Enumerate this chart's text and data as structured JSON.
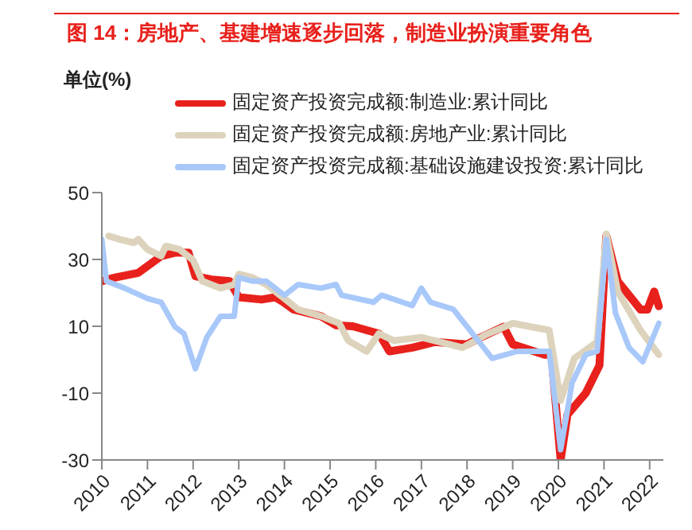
{
  "chart_data": {
    "type": "line",
    "title": "图 14：房地产、基建增速逐步回落，制造业扮演重要角色",
    "ylabel": "单位(%)",
    "xlim": [
      2010,
      2022.3
    ],
    "xticks": [
      2010,
      2011,
      2012,
      2013,
      2014,
      2015,
      2016,
      2017,
      2018,
      2019,
      2020,
      2021,
      2022
    ],
    "ylim": [
      -30,
      50
    ],
    "yticks": [
      -30,
      -10,
      10,
      30,
      50
    ],
    "grid": false,
    "legend": "top",
    "marker": "none",
    "line_style": "solid",
    "series": [
      {
        "name": "固定资产投资完成额:制造业:累计同比",
        "color": "#e8211c",
        "x": [
          2010.0,
          2010.3,
          2010.8,
          2011.1,
          2011.3,
          2011.6,
          2011.9,
          2012.05,
          2012.4,
          2012.8,
          2013.0,
          2013.5,
          2013.8,
          2014.0,
          2014.2,
          2014.8,
          2015.13,
          2015.5,
          2016.07,
          2016.3,
          2016.8,
          2017.3,
          2018.0,
          2018.2,
          2018.8,
          2019.0,
          2019.7,
          2019.85,
          2020.05,
          2020.2,
          2020.6,
          2020.9,
          2021.05,
          2021.3,
          2021.8,
          2021.95,
          2022.1,
          2022.2
        ],
        "values": [
          23.5,
          24.6,
          26,
          29,
          31,
          32,
          32,
          25,
          24,
          23.5,
          18.7,
          18,
          18.7,
          17,
          15,
          13,
          10.3,
          10,
          7.8,
          2.5,
          3.6,
          5.3,
          4.6,
          6,
          9.9,
          4.6,
          1.5,
          1.5,
          -30,
          -16.4,
          -10,
          -1.7,
          37,
          23.5,
          15,
          15,
          20.4,
          16
        ]
      },
      {
        "name": "固定资产投资完成额:房地产业:累计同比",
        "color": "#ddd3bc",
        "x": [
          2010.15,
          2010.4,
          2010.7,
          2010.8,
          2011.0,
          2011.3,
          2011.4,
          2011.7,
          2012.0,
          2012.2,
          2012.6,
          2012.9,
          2013.0,
          2013.3,
          2013.6,
          2014.0,
          2014.3,
          2014.8,
          2015.2,
          2015.4,
          2015.8,
          2016.07,
          2016.4,
          2017.0,
          2017.9,
          2018.4,
          2019.0,
          2019.8,
          2020.05,
          2020.35,
          2020.85,
          2021.05,
          2021.3,
          2021.8,
          2022.2
        ],
        "values": [
          37,
          36,
          35,
          36,
          33,
          31,
          34,
          33,
          29.8,
          23.5,
          21.4,
          22.5,
          25.6,
          24.6,
          22.5,
          18.3,
          15,
          13,
          10.9,
          5.7,
          2.5,
          7.8,
          5.7,
          6.7,
          3.6,
          7.4,
          10.9,
          8.8,
          -12.2,
          0.4,
          5.3,
          37.6,
          20.4,
          8.8,
          1.5
        ]
      },
      {
        "name": "固定资产投资完成额:基础设施建设投资:累计同比",
        "color": "#a8c8fa",
        "x": [
          2010.0,
          2010.1,
          2010.5,
          2011.0,
          2011.3,
          2011.6,
          2011.8,
          2012.05,
          2012.3,
          2012.6,
          2012.9,
          2013.0,
          2013.3,
          2013.6,
          2014.0,
          2014.3,
          2014.8,
          2015.13,
          2015.25,
          2015.95,
          2016.13,
          2016.8,
          2017.0,
          2017.2,
          2017.7,
          2018.55,
          2019.1,
          2019.8,
          2020.05,
          2020.3,
          2020.6,
          2020.85,
          2021.05,
          2021.25,
          2021.55,
          2021.85,
          2022.2
        ],
        "values": [
          36,
          23.5,
          21.4,
          18.3,
          17.2,
          9.9,
          7.8,
          -2.7,
          6.7,
          13,
          13,
          24.6,
          23.5,
          23.5,
          19.3,
          22.5,
          21.4,
          22.5,
          19.3,
          17.2,
          19.3,
          16.2,
          21.4,
          17.2,
          15.1,
          0.4,
          2.5,
          2.5,
          -26.9,
          -6.9,
          1.5,
          2.5,
          36,
          14,
          3.6,
          -0.6,
          10.9
        ]
      }
    ]
  }
}
